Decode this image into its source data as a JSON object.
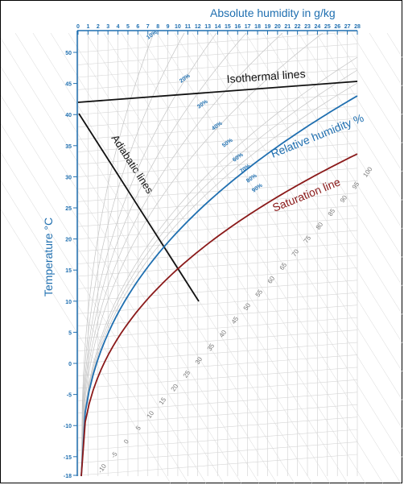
{
  "chart_data": {
    "type": "diagram",
    "top_axis": {
      "title": "Absolute humidity in g/kg",
      "ticks": [
        "0",
        "1",
        "2",
        "3",
        "4",
        "5",
        "6",
        "7",
        "8",
        "9",
        "10",
        "11",
        "12",
        "13",
        "14",
        "15",
        "16",
        "17",
        "18",
        "19",
        "20",
        "21",
        "22",
        "23",
        "24",
        "25",
        "26",
        "27",
        "28"
      ]
    },
    "left_axis": {
      "title": "Temperature °C",
      "ticks": [
        "50",
        "45",
        "40",
        "35",
        "30",
        "25",
        "20",
        "15",
        "10",
        "5",
        "0",
        "-5",
        "-10",
        "-15",
        "-18"
      ]
    },
    "rh_labels": [
      "10%",
      "20%",
      "30%",
      "40%",
      "50%",
      "60%",
      "70%",
      "80%",
      "90%"
    ],
    "enthalpy_labels": [
      "-10",
      "-5",
      "0",
      "5",
      "10",
      "15",
      "20",
      "25",
      "30",
      "35",
      "40",
      "45",
      "50",
      "55",
      "60",
      "65",
      "70",
      "75",
      "80",
      "85",
      "90",
      "95",
      "100"
    ],
    "annotations": {
      "isothermal": "Isothermal lines",
      "adiabatic": "Adiabatic lines",
      "relative_humidity": "Relative humidity %",
      "saturation": "Saturation line"
    },
    "colors": {
      "axis": "#1f6fb0",
      "relative_humidity_line": "#1f6fb0",
      "saturation_line": "#8b1a1a",
      "guide_lines": "#111111",
      "grid": "#c8c8c8"
    }
  }
}
